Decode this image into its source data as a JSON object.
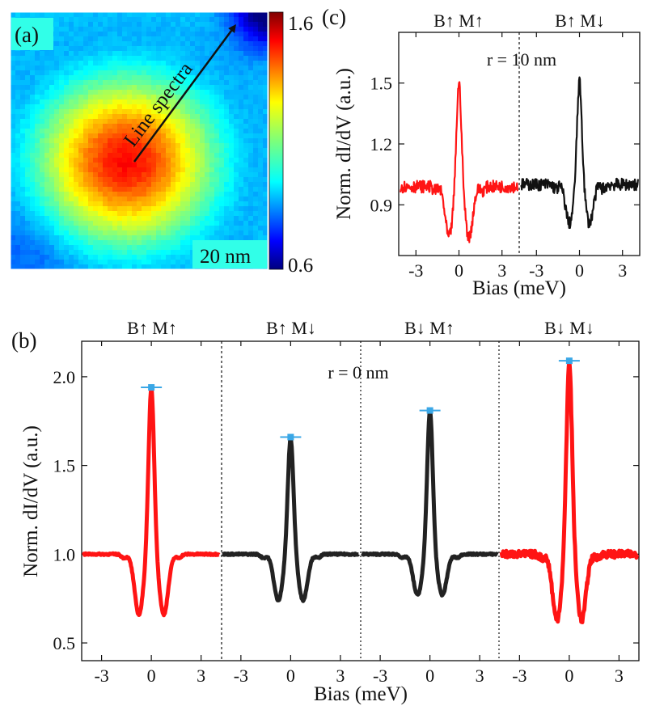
{
  "panel_a": {
    "label": "(a)",
    "arrow_label": "Line spectra",
    "scalebar_label": "20 nm",
    "colorbar": {
      "max_label": "1.6",
      "min_label": "0.6"
    }
  },
  "panel_b": {
    "label": "(b)",
    "annotation": "r = 0 nm"
  },
  "panel_c": {
    "label": "(c)",
    "annotation": "r = 10 nm"
  },
  "chart_data": [
    {
      "panel": "a",
      "type": "heatmap",
      "title": "",
      "annotations": [
        "Line spectra",
        "20 nm"
      ],
      "colorbar_range": [
        0.6,
        1.6
      ],
      "description_values": {
        "center_value": 1.5,
        "edge_value": 0.9,
        "corner_top_right_value": 0.6
      }
    },
    {
      "panel": "b",
      "type": "line",
      "xlabel": "Bias (meV)",
      "ylabel": "Norm. dI/dV (a.u.)",
      "xticks": [
        -3,
        0,
        3
      ],
      "yticks": [
        0.5,
        1.0,
        1.5,
        2.0
      ],
      "ytick_labels": [
        "0.5",
        "1.0",
        "1.5",
        "2.0"
      ],
      "ylim": [
        0.4,
        2.2
      ],
      "xlim_each": [
        -4.2,
        4.2
      ],
      "annotation": "r = 0 nm",
      "series": [
        {
          "name": "B↑ M↑",
          "color": "#ff1414",
          "peak": 1.94,
          "dip": 0.66,
          "dip_x": 0.75,
          "baseline": 1.0,
          "noise": 0.005
        },
        {
          "name": "B↑ M↓",
          "color": "#222222",
          "peak": 1.66,
          "dip": 0.74,
          "dip_x": 0.75,
          "baseline": 1.0,
          "noise": 0.005
        },
        {
          "name": "B↓ M↑",
          "color": "#222222",
          "peak": 1.81,
          "dip": 0.77,
          "dip_x": 0.75,
          "baseline": 1.0,
          "noise": 0.005
        },
        {
          "name": "B↓ M↓",
          "color": "#ff1414",
          "peak": 2.09,
          "dip": 0.63,
          "dip_x": 0.75,
          "baseline": 1.0,
          "noise": 0.02
        }
      ]
    },
    {
      "panel": "c",
      "type": "line",
      "xlabel": "Bias (meV)",
      "ylabel": "Norm. dI/dV (a.u.)",
      "xticks": [
        -3,
        0,
        3
      ],
      "yticks": [
        0.9,
        1.2,
        1.5
      ],
      "ytick_labels": [
        "0.9",
        "1.2",
        "1.5"
      ],
      "ylim": [
        0.65,
        1.75
      ],
      "xlim_each": [
        -4.2,
        4.2
      ],
      "annotation": "r = 10 nm",
      "series": [
        {
          "name": "B↑ M↑",
          "color": "#ff1414",
          "peak": 1.51,
          "dip": 0.74,
          "dip_x": 0.7,
          "baseline": 0.99,
          "noise": 0.03
        },
        {
          "name": "B↑ M↓",
          "color": "#111111",
          "peak": 1.51,
          "dip": 0.81,
          "dip_x": 0.7,
          "baseline": 1.0,
          "noise": 0.03
        }
      ]
    }
  ]
}
